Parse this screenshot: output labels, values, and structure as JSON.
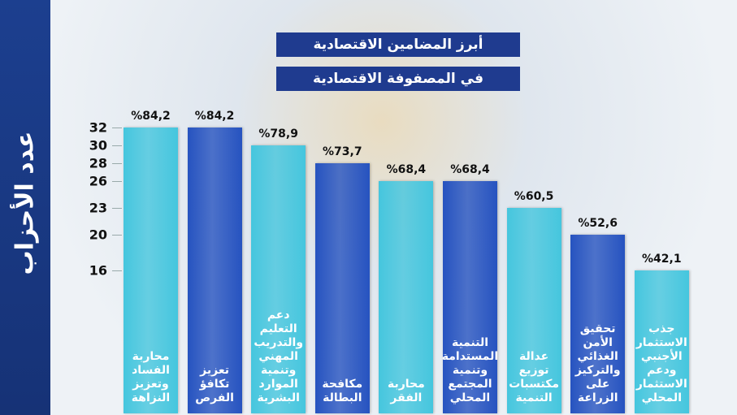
{
  "chart_data": {
    "type": "bar",
    "title_lines": [
      "أبرز المضامين الاقتصادية",
      "في المصفوفة الاقتصادية"
    ],
    "y_label": "عدد الأحزاب",
    "categories": [
      "محاربة الفساد وتعزيز النزاهة",
      "تعزيز تكافؤ الفرص",
      "دعم التعليم والتدريب المهني وتنمية الموارد البشرية",
      "مكافحة البطالة",
      "محاربة الفقر",
      "التنمية المستدامة وتنمية المجتمع المحلي",
      "عدالة توزيع مكتسبات التنمية",
      "تحقيق الأمن الغذائي والتركيز على الزراعة",
      "جذب الاستثمار الأجنبي ودعم الاستثمار المحلي"
    ],
    "values": [
      32,
      32,
      30,
      28,
      26,
      26,
      23,
      20,
      16
    ],
    "percentages": [
      84.2,
      84.2,
      78.9,
      73.7,
      68.4,
      68.4,
      60.5,
      52.6,
      42.1
    ],
    "percentage_labels": [
      "%84,2",
      "%84,2",
      "%78,9",
      "%73,7",
      "%68,4",
      "%68,4",
      "%60,5",
      "%52,6",
      "%42,1"
    ],
    "colors": [
      "#45c6de",
      "#2653c0"
    ],
    "ylim": [
      0,
      32
    ],
    "yticks": [
      16,
      20,
      23,
      26,
      28,
      30,
      32
    ]
  }
}
